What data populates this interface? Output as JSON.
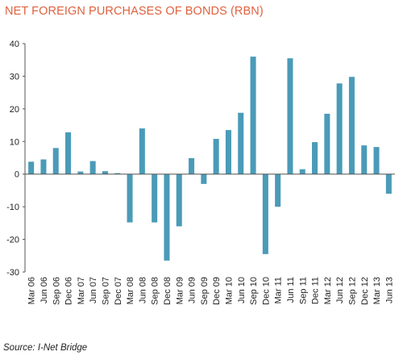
{
  "colors": {
    "title": "#e0613f",
    "bar": "#4a9bb8",
    "grid": "#d4d4d4",
    "axis": "#555555"
  },
  "source_text": "Source: I-Net Bridge",
  "chart_data": {
    "type": "bar",
    "title": "NET FOREIGN PURCHASES OF BONDS (RBN)",
    "xlabel": "",
    "ylabel": "",
    "ylim": [
      -30,
      40
    ],
    "yticks": [
      40,
      30,
      20,
      10,
      0,
      -10,
      -20,
      -30
    ],
    "grid": false,
    "categories": [
      "Mar 06",
      "Jun 06",
      "Sep 06",
      "Dec 06",
      "Mar 07",
      "Jun 07",
      "Sep 07",
      "Dec 07",
      "Mar 08",
      "Jun 08",
      "Sep 08",
      "Dec 08",
      "Mar 09",
      "Jun 09",
      "Sep 09",
      "Dec 09",
      "Mar 10",
      "Jun 10",
      "Sep 10",
      "Dec 10",
      "Mar 11",
      "Jun 11",
      "Sep 11",
      "Dec 11",
      "Mar 12",
      "Jun 12",
      "Sep 12",
      "Dec 12",
      "Mar 13",
      "Jun 13"
    ],
    "values": [
      3.8,
      4.5,
      8.0,
      12.8,
      0.8,
      4.0,
      0.9,
      0.3,
      -14.8,
      14.0,
      -14.8,
      -26.5,
      -16.0,
      4.9,
      -3.0,
      10.8,
      13.5,
      18.8,
      36.0,
      -24.5,
      -10.0,
      35.5,
      1.5,
      9.8,
      18.5,
      27.8,
      29.8,
      8.8,
      8.3,
      -6.0
    ]
  }
}
